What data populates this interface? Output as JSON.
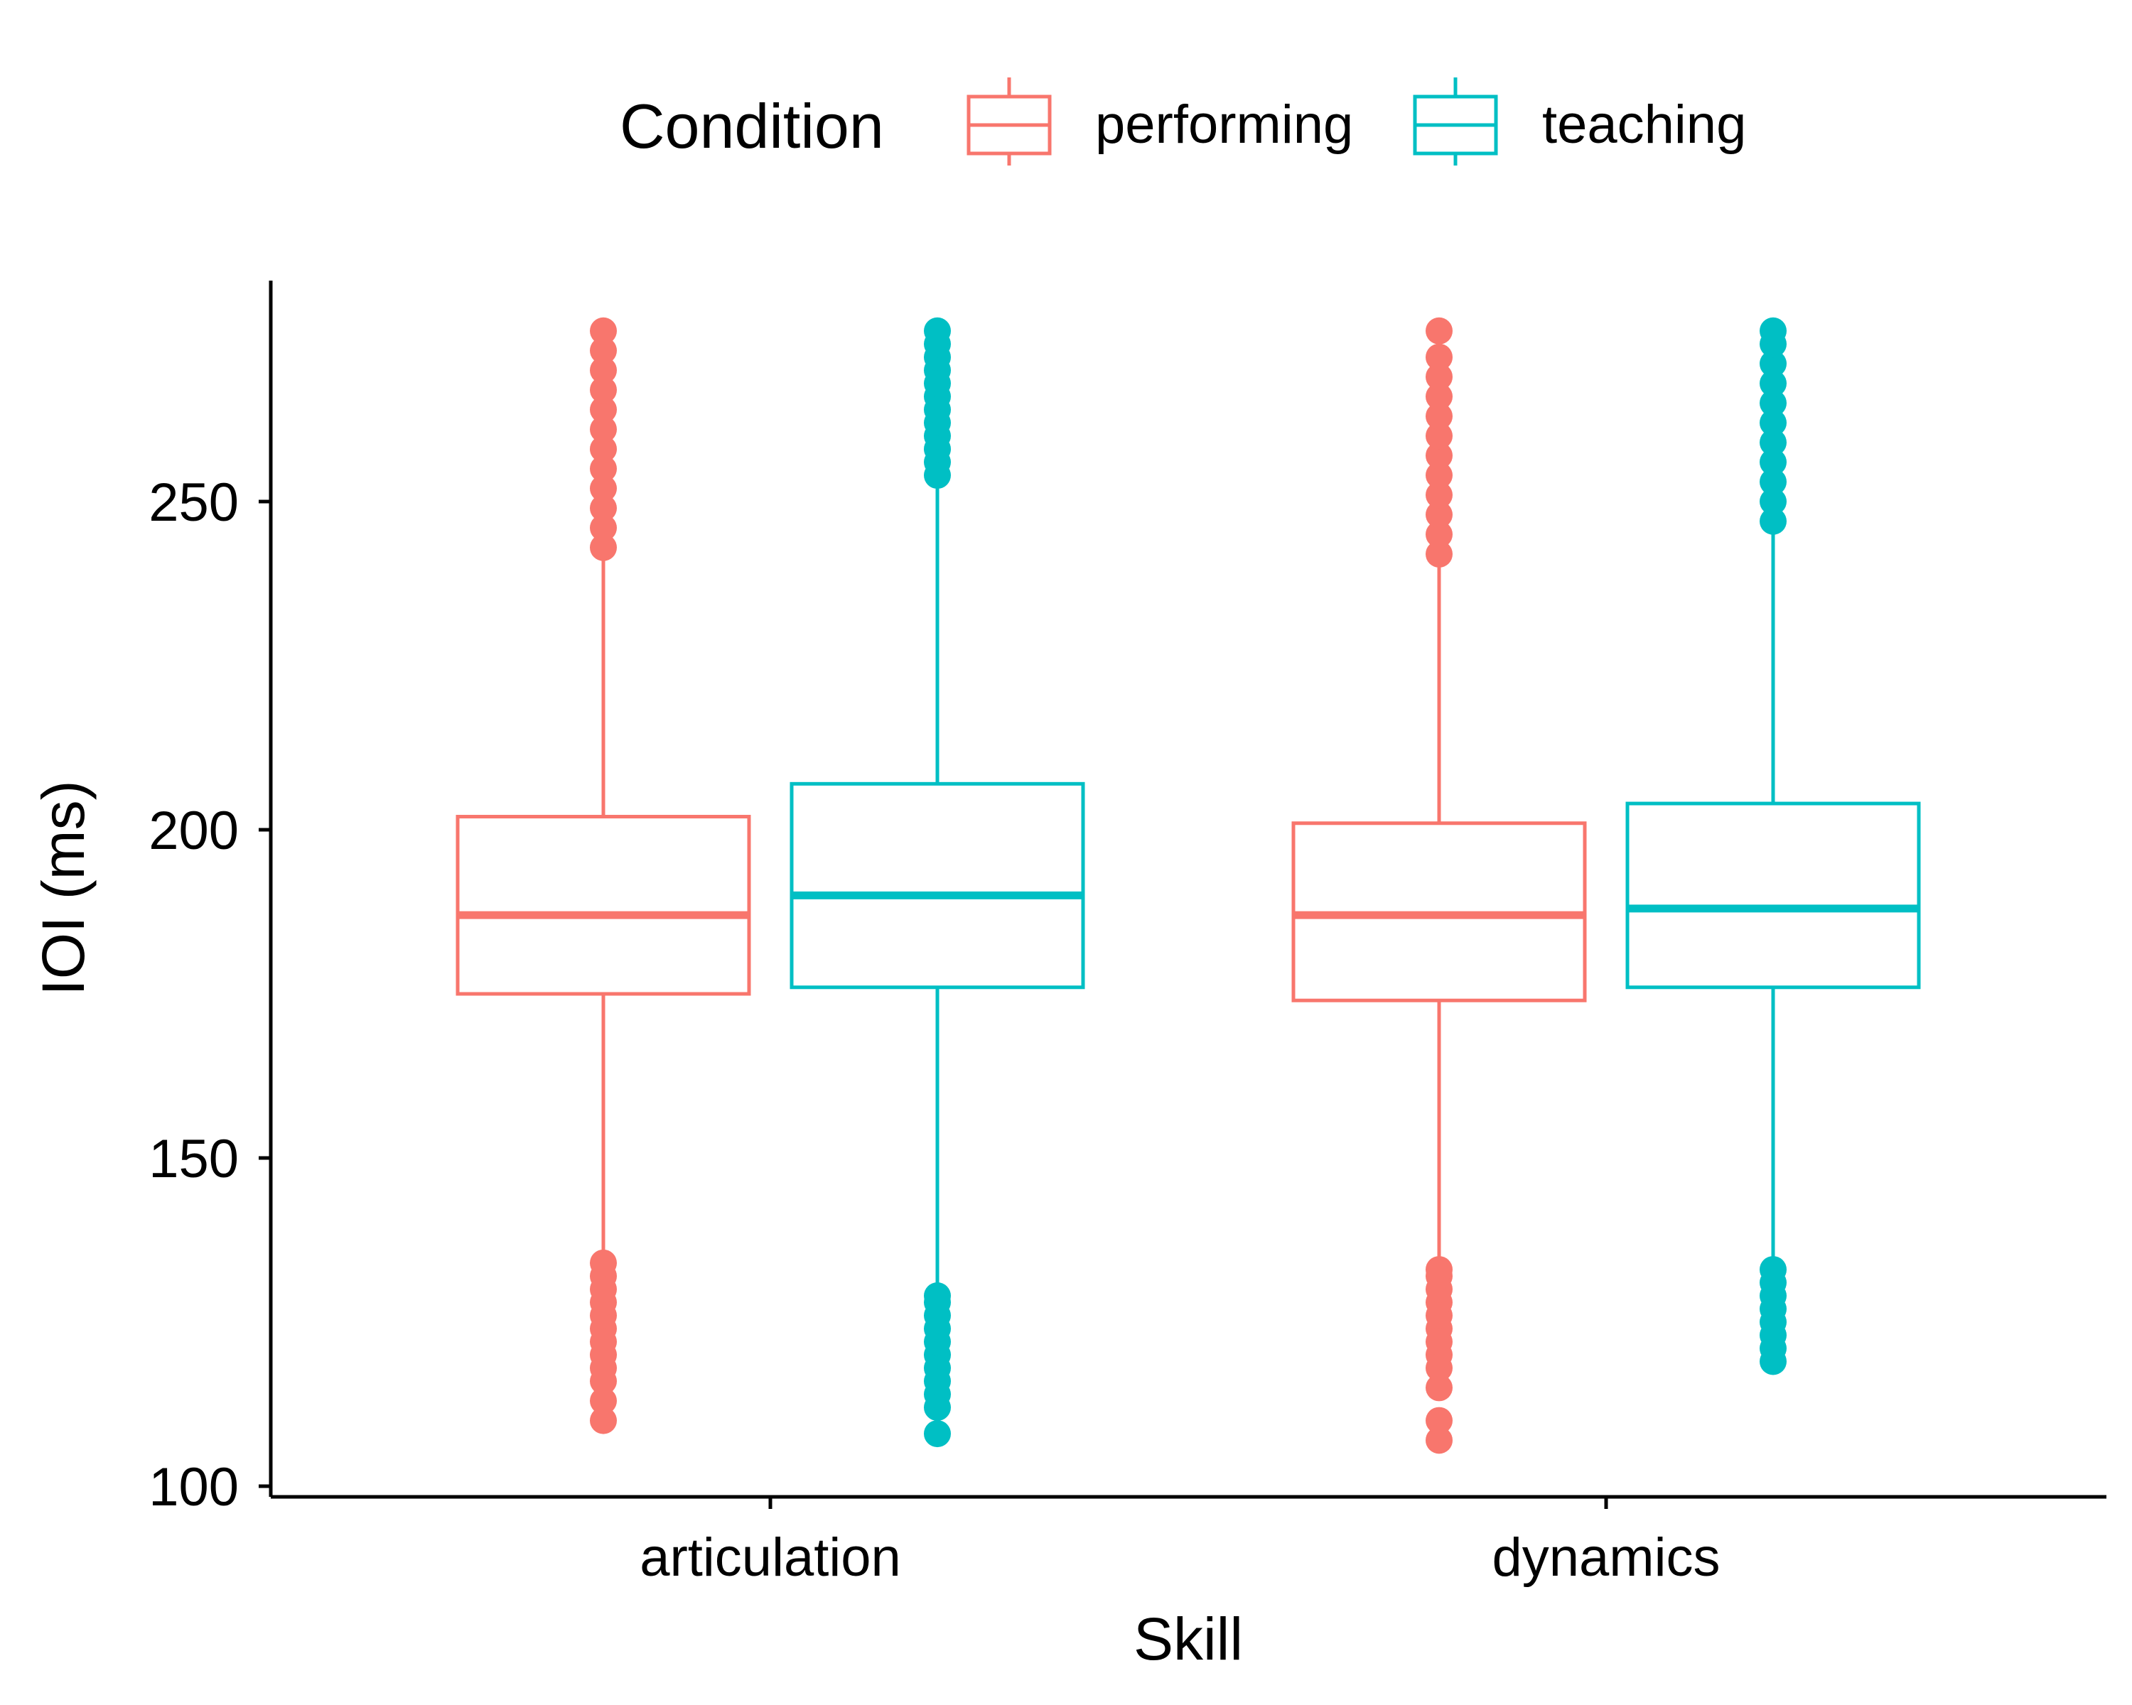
{
  "chart_data": {
    "type": "box",
    "xlabel": "Skill",
    "ylabel": "IOI (ms)",
    "ylim": [
      100,
      280
    ],
    "yticks": [
      100,
      150,
      200,
      250
    ],
    "categories": [
      "articulation",
      "dynamics"
    ],
    "legend": {
      "title": "Condition",
      "placement": "top",
      "entries": [
        "performing",
        "teaching"
      ]
    },
    "grid": false,
    "colors": {
      "performing": "#F8766D",
      "teaching": "#00BFC4"
    },
    "series": [
      {
        "name": "performing",
        "boxes": [
          {
            "category": "articulation",
            "whisker_low": 135,
            "q1": 175,
            "median": 187,
            "q3": 202,
            "whisker_high": 242,
            "outliers_low": [
              110,
              113,
              116,
              118,
              120,
              122,
              124,
              126,
              128,
              130,
              132,
              134
            ],
            "outliers_high": [
              243,
              246,
              249,
              252,
              255,
              258,
              261,
              264,
              267,
              270,
              273,
              276
            ]
          },
          {
            "category": "dynamics",
            "whisker_low": 134,
            "q1": 174,
            "median": 187,
            "q3": 201,
            "whisker_high": 241,
            "outliers_low": [
              107,
              110,
              115,
              118,
              120,
              122,
              124,
              126,
              128,
              130,
              132,
              133
            ],
            "outliers_high": [
              242,
              245,
              248,
              251,
              254,
              257,
              260,
              263,
              266,
              269,
              272,
              276
            ]
          }
        ]
      },
      {
        "name": "teaching",
        "boxes": [
          {
            "category": "articulation",
            "whisker_low": 130,
            "q1": 176,
            "median": 190,
            "q3": 207,
            "whisker_high": 253,
            "outliers_low": [
              108,
              112,
              114,
              116,
              118,
              120,
              122,
              124,
              126,
              128,
              129
            ],
            "outliers_high": [
              254,
              256,
              258,
              260,
              262,
              264,
              266,
              268,
              270,
              272,
              274,
              276
            ]
          },
          {
            "category": "dynamics",
            "whisker_low": 134,
            "q1": 176,
            "median": 188,
            "q3": 204,
            "whisker_high": 246,
            "outliers_low": [
              119,
              121,
              123,
              125,
              127,
              129,
              131,
              133
            ],
            "outliers_high": [
              247,
              250,
              253,
              256,
              259,
              262,
              265,
              268,
              271,
              274,
              276
            ]
          }
        ]
      }
    ]
  }
}
